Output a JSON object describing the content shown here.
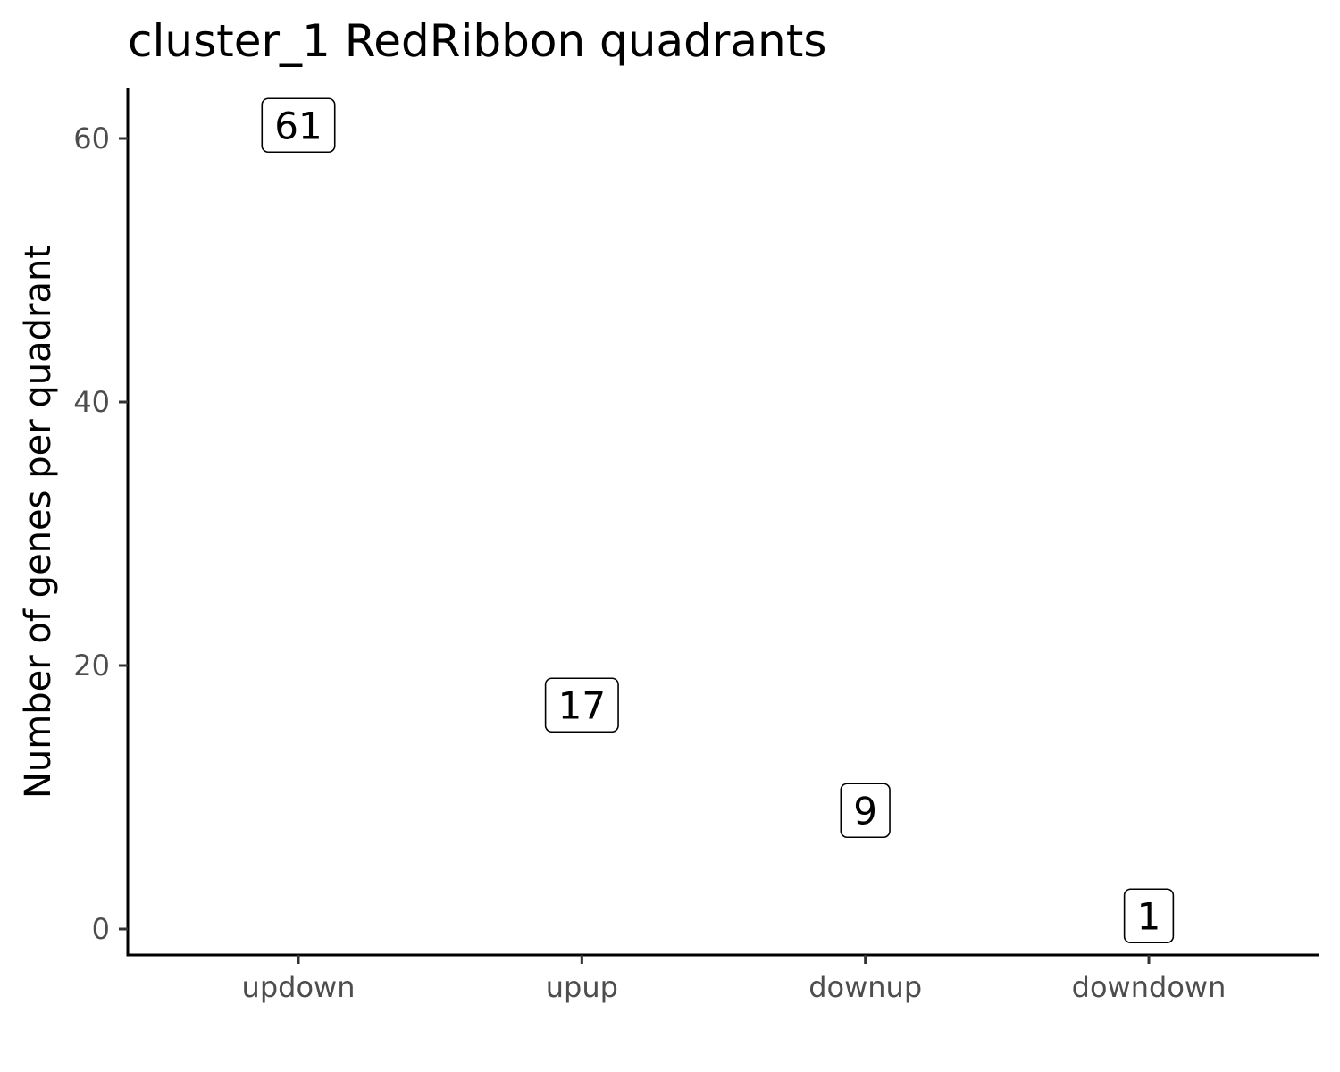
{
  "chart_data": {
    "type": "scatter",
    "title": "cluster_1 RedRibbon quadrants",
    "xlabel": "",
    "ylabel": "Number of genes per quadrant",
    "categories": [
      "updown",
      "upup",
      "downup",
      "downdown"
    ],
    "values": [
      61,
      17,
      9,
      1
    ],
    "data_labels": [
      "61",
      "17",
      "9",
      "1"
    ],
    "y_ticks": [
      0,
      20,
      40,
      60
    ],
    "y_tick_labels": [
      "0",
      "20",
      "40",
      "60"
    ],
    "ylim": [
      -2,
      64
    ],
    "grid": false,
    "legend": "none",
    "colors": {
      "text": "#000000",
      "tick_text": "#4d4d4d",
      "axis": "#000000",
      "box_fill": "#ffffff"
    }
  }
}
